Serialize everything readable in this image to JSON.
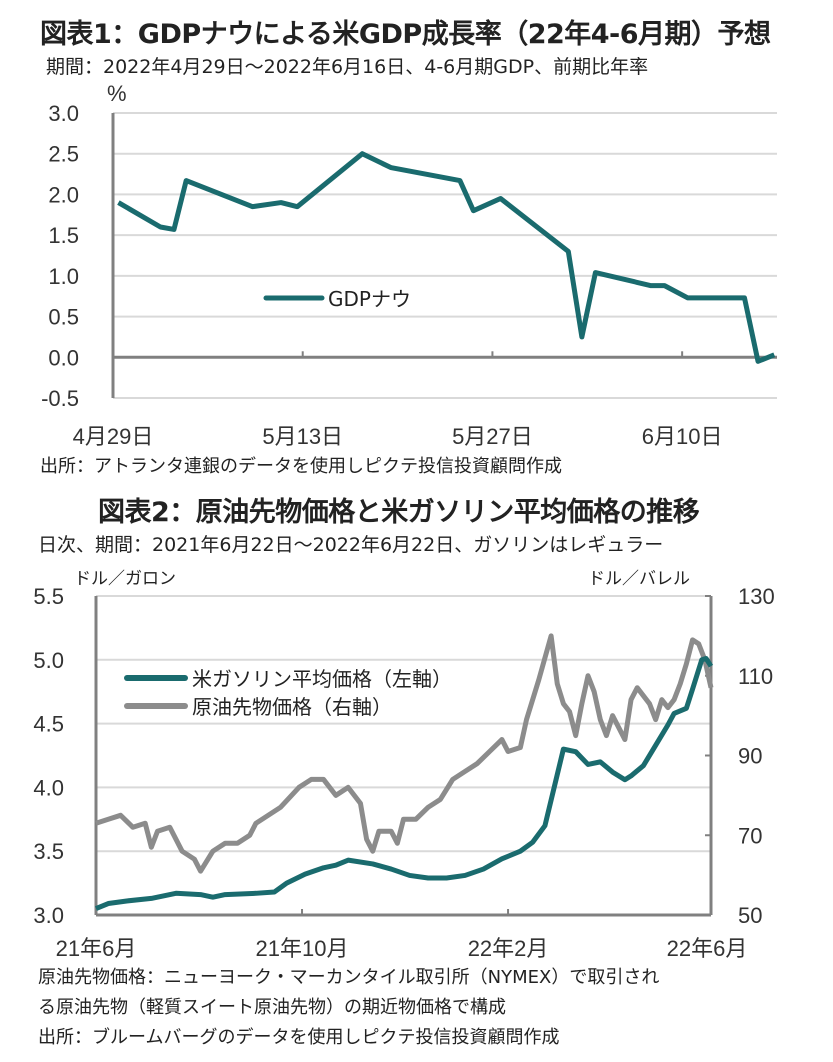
{
  "chart_data": [
    {
      "type": "line",
      "title": "図表1：GDPナウによる米GDP成長率（22年4-6月期）予想",
      "subtitle": "期間：2022年4月29日～2022年6月16日、4-6月期GDP、前期比年率",
      "ylabel": "%",
      "ylim": [
        -0.5,
        3.0
      ],
      "yticks": [
        "3.0",
        "2.5",
        "2.0",
        "1.5",
        "1.0",
        "0.5",
        "0.0",
        "-0.5"
      ],
      "ytick_values": [
        3.0,
        2.5,
        2.0,
        1.5,
        1.0,
        0.5,
        0.0,
        -0.5
      ],
      "xlim_days": [
        0,
        49
      ],
      "xticks": [
        {
          "label": "4月29日",
          "day": 0
        },
        {
          "label": "5月13日",
          "day": 14
        },
        {
          "label": "5月27日",
          "day": 28
        },
        {
          "label": "6月10日",
          "day": 42
        }
      ],
      "grid": true,
      "legend_position": "center-left",
      "series": [
        {
          "name": "GDPナウ",
          "color": "#1a6b6e",
          "points": [
            [
              0.4,
              1.9
            ],
            [
              3.5,
              1.6
            ],
            [
              4.5,
              1.57
            ],
            [
              5.4,
              2.17
            ],
            [
              10.3,
              1.85
            ],
            [
              12.4,
              1.9
            ],
            [
              13.6,
              1.85
            ],
            [
              18.4,
              2.5
            ],
            [
              20.5,
              2.33
            ],
            [
              25.6,
              2.17
            ],
            [
              26.6,
              1.8
            ],
            [
              28.6,
              1.95
            ],
            [
              33.6,
              1.3
            ],
            [
              34.6,
              0.25
            ],
            [
              35.6,
              1.04
            ],
            [
              39.7,
              0.88
            ],
            [
              40.7,
              0.88
            ],
            [
              42.4,
              0.73
            ],
            [
              46.6,
              0.73
            ],
            [
              47.6,
              -0.05
            ],
            [
              48.8,
              0.03
            ]
          ]
        }
      ],
      "source": "出所：アトランタ連銀のデータを使用しピクテ投信投資顧問作成"
    },
    {
      "type": "line",
      "title": "図表2：原油先物価格と米ガソリン平均価格の推移",
      "subtitle": "日次、期間：2021年6月22日～2022年6月22日、ガソリンはレギュラー",
      "ylabel_left": "ドル／ガロン",
      "ylabel_right": "ドル／バレル",
      "ylim_left": [
        3.0,
        5.5
      ],
      "ylim_right": [
        50,
        130
      ],
      "yticks_left": [
        "5.5",
        "5.0",
        "4.5",
        "4.0",
        "3.5",
        "3.0"
      ],
      "yticks_left_values": [
        5.5,
        5.0,
        4.5,
        4.0,
        3.5,
        3.0
      ],
      "yticks_right": [
        "130",
        "110",
        "90",
        "70",
        "50"
      ],
      "yticks_right_values": [
        130,
        110,
        90,
        70,
        50
      ],
      "xlim": [
        0,
        1
      ],
      "xticks": [
        {
          "label": "21年6月",
          "pos": 0.0
        },
        {
          "label": "21年10月",
          "pos": 0.335
        },
        {
          "label": "22年2月",
          "pos": 0.67
        },
        {
          "label": "22年6月",
          "pos": 1.0
        }
      ],
      "grid": true,
      "legend_position": "top-left",
      "series": [
        {
          "name": "米ガソリン平均価格（左軸）",
          "axis": "left",
          "color": "#1a6b6e",
          "points": [
            [
              0.0,
              3.05
            ],
            [
              0.02,
              3.09
            ],
            [
              0.05,
              3.11
            ],
            [
              0.09,
              3.13
            ],
            [
              0.13,
              3.17
            ],
            [
              0.17,
              3.16
            ],
            [
              0.19,
              3.14
            ],
            [
              0.21,
              3.16
            ],
            [
              0.26,
              3.17
            ],
            [
              0.29,
              3.18
            ],
            [
              0.31,
              3.25
            ],
            [
              0.34,
              3.32
            ],
            [
              0.37,
              3.37
            ],
            [
              0.39,
              3.39
            ],
            [
              0.41,
              3.43
            ],
            [
              0.45,
              3.4
            ],
            [
              0.48,
              3.36
            ],
            [
              0.51,
              3.31
            ],
            [
              0.54,
              3.29
            ],
            [
              0.57,
              3.29
            ],
            [
              0.6,
              3.31
            ],
            [
              0.63,
              3.36
            ],
            [
              0.66,
              3.44
            ],
            [
              0.69,
              3.5
            ],
            [
              0.71,
              3.57
            ],
            [
              0.73,
              3.7
            ],
            [
              0.75,
              4.1
            ],
            [
              0.76,
              4.3
            ],
            [
              0.78,
              4.28
            ],
            [
              0.8,
              4.18
            ],
            [
              0.82,
              4.2
            ],
            [
              0.84,
              4.12
            ],
            [
              0.86,
              4.06
            ],
            [
              0.87,
              4.09
            ],
            [
              0.89,
              4.17
            ],
            [
              0.91,
              4.33
            ],
            [
              0.93,
              4.49
            ],
            [
              0.94,
              4.58
            ],
            [
              0.96,
              4.62
            ],
            [
              0.97,
              4.77
            ],
            [
              0.985,
              5.0
            ],
            [
              0.992,
              5.01
            ],
            [
              1.0,
              4.95
            ]
          ]
        },
        {
          "name": "原油先物価格（右軸）",
          "axis": "right",
          "color": "#8c8c8c",
          "points": [
            [
              0.0,
              73
            ],
            [
              0.02,
              74
            ],
            [
              0.04,
              75
            ],
            [
              0.06,
              72
            ],
            [
              0.08,
              73
            ],
            [
              0.09,
              67
            ],
            [
              0.1,
              71
            ],
            [
              0.12,
              72
            ],
            [
              0.14,
              66
            ],
            [
              0.16,
              64
            ],
            [
              0.17,
              61
            ],
            [
              0.19,
              66
            ],
            [
              0.21,
              68
            ],
            [
              0.23,
              68
            ],
            [
              0.25,
              70
            ],
            [
              0.26,
              73
            ],
            [
              0.28,
              75
            ],
            [
              0.3,
              77
            ],
            [
              0.33,
              82
            ],
            [
              0.35,
              84
            ],
            [
              0.37,
              84
            ],
            [
              0.39,
              80
            ],
            [
              0.41,
              82
            ],
            [
              0.43,
              78
            ],
            [
              0.44,
              69
            ],
            [
              0.45,
              66
            ],
            [
              0.46,
              71
            ],
            [
              0.48,
              71
            ],
            [
              0.49,
              68
            ],
            [
              0.5,
              74
            ],
            [
              0.52,
              74
            ],
            [
              0.54,
              77
            ],
            [
              0.56,
              79
            ],
            [
              0.58,
              84
            ],
            [
              0.6,
              86
            ],
            [
              0.62,
              88
            ],
            [
              0.64,
              91
            ],
            [
              0.66,
              94
            ],
            [
              0.67,
              91
            ],
            [
              0.69,
              92
            ],
            [
              0.7,
              99
            ],
            [
              0.72,
              109
            ],
            [
              0.74,
              120
            ],
            [
              0.75,
              108
            ],
            [
              0.76,
              103
            ],
            [
              0.77,
              101
            ],
            [
              0.78,
              95
            ],
            [
              0.79,
              103
            ],
            [
              0.8,
              110
            ],
            [
              0.81,
              106
            ],
            [
              0.82,
              99
            ],
            [
              0.83,
              95
            ],
            [
              0.84,
              100
            ],
            [
              0.86,
              94
            ],
            [
              0.87,
              104
            ],
            [
              0.88,
              107
            ],
            [
              0.9,
              103
            ],
            [
              0.91,
              99
            ],
            [
              0.92,
              104
            ],
            [
              0.93,
              102
            ],
            [
              0.94,
              104
            ],
            [
              0.95,
              108
            ],
            [
              0.96,
              113
            ],
            [
              0.97,
              119
            ],
            [
              0.98,
              118
            ],
            [
              0.99,
              114
            ],
            [
              1.0,
              107
            ]
          ]
        }
      ],
      "notes": [
        "原油先物価格：ニューヨーク・マーカンタイル取引所（NYMEX）で取引され",
        "る原油先物（軽質スイート原油先物）の期近物価格で構成",
        "出所：ブルームバーグのデータを使用しピクテ投信投資顧問作成"
      ]
    }
  ]
}
